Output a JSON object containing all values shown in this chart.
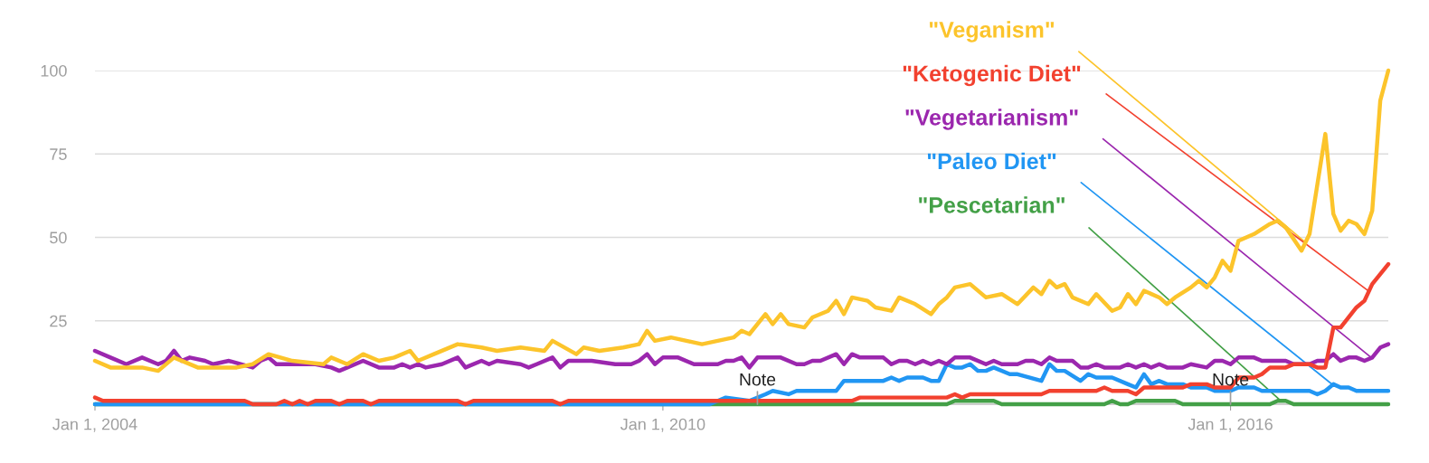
{
  "chart_data": {
    "type": "line",
    "grid": "y",
    "legend": false,
    "xlim": [
      "2004-01-01",
      "2017-09-01"
    ],
    "ylim": [
      0,
      100
    ],
    "xticks": [
      {
        "value": "2004-01-01",
        "label": "Jan 1, 2004"
      },
      {
        "value": "2010-01-01",
        "label": "Jan 1, 2010"
      },
      {
        "value": "2016-01-01",
        "label": "Jan 1, 2016"
      }
    ],
    "yticks": [
      25,
      50,
      75,
      100
    ],
    "annotations": [
      {
        "text": "Note",
        "x": "2011-01",
        "y": 0
      },
      {
        "text": "Note",
        "x": "2016-01",
        "y": 0
      }
    ],
    "series": [
      {
        "name": "\"Veganism\"",
        "color": "#fcc42b",
        "x": [
          "2004-01",
          "2004-03",
          "2004-07",
          "2004-09",
          "2004-11",
          "2005-02",
          "2005-07",
          "2005-09",
          "2005-11",
          "2006-02",
          "2006-06",
          "2006-07",
          "2006-09",
          "2006-11",
          "2007-01",
          "2007-03",
          "2007-05",
          "2007-06",
          "2007-08",
          "2007-11",
          "2008-02",
          "2008-04",
          "2008-07",
          "2008-10",
          "2008-11",
          "2009-02",
          "2009-03",
          "2009-05",
          "2009-08",
          "2009-10",
          "2009-11",
          "2009-12",
          "2010-02",
          "2010-06",
          "2010-08",
          "2010-10",
          "2010-11",
          "2010-12",
          "2011-02",
          "2011-03",
          "2011-04",
          "2011-05",
          "2011-07",
          "2011-08",
          "2011-10",
          "2011-11",
          "2011-12",
          "2012-01",
          "2012-03",
          "2012-04",
          "2012-06",
          "2012-07",
          "2012-09",
          "2012-11",
          "2012-12",
          "2013-01",
          "2013-02",
          "2013-04",
          "2013-06",
          "2013-08",
          "2013-10",
          "2013-12",
          "2014-01",
          "2014-02",
          "2014-03",
          "2014-04",
          "2014-05",
          "2014-07",
          "2014-08",
          "2014-10",
          "2014-11",
          "2014-12",
          "2015-01",
          "2015-02",
          "2015-04",
          "2015-05",
          "2015-06",
          "2015-08",
          "2015-09",
          "2015-10",
          "2015-11",
          "2015-12",
          "2016-01",
          "2016-02",
          "2016-04",
          "2016-06",
          "2016-07",
          "2016-08",
          "2016-10",
          "2016-11",
          "2017-01",
          "2017-02",
          "2017-03",
          "2017-04",
          "2017-05",
          "2017-06",
          "2017-07",
          "2017-08",
          "2017-09"
        ],
        "values": [
          13,
          11,
          11,
          10,
          14,
          11,
          11,
          12,
          15,
          13,
          12,
          14,
          12,
          15,
          13,
          14,
          16,
          13,
          15,
          18,
          17,
          16,
          17,
          16,
          19,
          15,
          17,
          16,
          17,
          18,
          22,
          19,
          20,
          18,
          19,
          20,
          22,
          21,
          27,
          24,
          27,
          24,
          23,
          26,
          28,
          31,
          27,
          32,
          31,
          29,
          28,
          32,
          30,
          27,
          30,
          32,
          35,
          36,
          32,
          33,
          30,
          35,
          33,
          37,
          35,
          36,
          32,
          30,
          33,
          28,
          29,
          33,
          30,
          34,
          32,
          30,
          32,
          35,
          37,
          35,
          38,
          43,
          40,
          49,
          51,
          54,
          55,
          53,
          46,
          51,
          81,
          57,
          52,
          55,
          54,
          51,
          58,
          91,
          100
        ]
      },
      {
        "name": "\"Ketogenic Diet\"",
        "color": "#f2412f",
        "x": [
          "2004-01",
          "2004-02",
          "2005-08",
          "2005-09",
          "2005-12",
          "2006-01",
          "2006-02",
          "2006-03",
          "2006-04",
          "2006-05",
          "2006-07",
          "2006-08",
          "2006-09",
          "2006-11",
          "2006-12",
          "2007-01",
          "2007-11",
          "2007-12",
          "2008-01",
          "2008-11",
          "2008-12",
          "2009-01",
          "2012-01",
          "2012-02",
          "2013-01",
          "2013-02",
          "2013-03",
          "2013-04",
          "2014-01",
          "2014-02",
          "2014-08",
          "2014-09",
          "2014-10",
          "2014-12",
          "2015-01",
          "2015-02",
          "2015-07",
          "2015-08",
          "2015-10",
          "2015-11",
          "2016-01",
          "2016-02",
          "2016-04",
          "2016-05",
          "2016-06",
          "2016-08",
          "2016-09",
          "2016-11",
          "2016-12",
          "2017-01",
          "2017-02",
          "2017-03",
          "2017-05",
          "2017-06",
          "2017-07",
          "2017-08",
          "2017-09"
        ],
        "values": [
          2,
          1,
          1,
          0,
          0,
          1,
          0,
          1,
          0,
          1,
          1,
          0,
          1,
          1,
          0,
          1,
          1,
          0,
          1,
          1,
          0,
          1,
          1,
          2,
          2,
          3,
          2,
          3,
          3,
          4,
          4,
          5,
          4,
          4,
          3,
          5,
          5,
          6,
          6,
          5,
          5,
          8,
          8,
          9,
          11,
          11,
          12,
          12,
          11,
          11,
          23,
          23,
          29,
          31,
          36,
          39,
          42
        ]
      },
      {
        "name": "\"Vegetarianism\"",
        "color": "#9b27ae",
        "x": [
          "2004-01",
          "2004-03",
          "2004-05",
          "2004-07",
          "2004-09",
          "2004-10",
          "2004-11",
          "2004-12",
          "2005-01",
          "2005-03",
          "2005-04",
          "2005-06",
          "2005-09",
          "2005-10",
          "2005-11",
          "2005-12",
          "2006-05",
          "2006-07",
          "2006-08",
          "2006-09",
          "2006-11",
          "2007-01",
          "2007-03",
          "2007-04",
          "2007-05",
          "2007-06",
          "2007-07",
          "2007-09",
          "2007-11",
          "2007-12",
          "2008-02",
          "2008-03",
          "2008-04",
          "2008-07",
          "2008-08",
          "2008-09",
          "2008-11",
          "2008-12",
          "2009-01",
          "2009-04",
          "2009-07",
          "2009-09",
          "2009-10",
          "2009-11",
          "2009-12",
          "2010-01",
          "2010-03",
          "2010-05",
          "2010-08",
          "2010-09",
          "2010-10",
          "2010-11",
          "2010-12",
          "2011-01",
          "2011-04",
          "2011-06",
          "2011-07",
          "2011-08",
          "2011-09",
          "2011-11",
          "2011-12",
          "2012-01",
          "2012-02",
          "2012-05",
          "2012-06",
          "2012-07",
          "2012-08",
          "2012-09",
          "2012-10",
          "2012-11",
          "2012-12",
          "2013-01",
          "2013-02",
          "2013-04",
          "2013-06",
          "2013-07",
          "2013-08",
          "2013-10",
          "2013-11",
          "2013-12",
          "2014-01",
          "2014-02",
          "2014-03",
          "2014-05",
          "2014-06",
          "2014-07",
          "2014-08",
          "2014-09",
          "2014-11",
          "2014-12",
          "2015-01",
          "2015-02",
          "2015-03",
          "2015-04",
          "2015-05",
          "2015-07",
          "2015-08",
          "2015-10",
          "2015-11",
          "2015-12",
          "2016-01",
          "2016-02",
          "2016-04",
          "2016-05",
          "2016-08",
          "2016-09",
          "2016-11",
          "2016-12",
          "2017-01",
          "2017-02",
          "2017-03",
          "2017-04",
          "2017-05",
          "2017-06",
          "2017-07",
          "2017-08",
          "2017-09"
        ],
        "values": [
          16,
          14,
          12,
          14,
          12,
          13,
          16,
          13,
          14,
          13,
          12,
          13,
          11,
          13,
          14,
          12,
          12,
          11,
          10,
          11,
          13,
          11,
          11,
          12,
          11,
          12,
          11,
          12,
          14,
          11,
          13,
          12,
          13,
          12,
          11,
          12,
          14,
          11,
          13,
          13,
          12,
          12,
          13,
          15,
          12,
          14,
          14,
          12,
          12,
          13,
          13,
          14,
          11,
          14,
          14,
          12,
          12,
          13,
          13,
          15,
          12,
          15,
          14,
          14,
          12,
          13,
          13,
          12,
          13,
          12,
          13,
          12,
          14,
          14,
          12,
          13,
          12,
          12,
          13,
          13,
          12,
          14,
          13,
          13,
          11,
          11,
          12,
          11,
          11,
          12,
          11,
          12,
          11,
          12,
          11,
          11,
          12,
          11,
          13,
          13,
          12,
          14,
          14,
          13,
          13,
          12,
          12,
          13,
          13,
          15,
          13,
          14,
          14,
          13,
          14,
          17,
          18
        ]
      },
      {
        "name": "\"Paleo Diet\"",
        "color": "#2196f3",
        "x": [
          "2004-01",
          "2010-07",
          "2010-08",
          "2010-09",
          "2010-12",
          "2011-02",
          "2011-03",
          "2011-05",
          "2011-06",
          "2011-11",
          "2011-12",
          "2012-05",
          "2012-06",
          "2012-07",
          "2012-08",
          "2012-10",
          "2012-11",
          "2012-12",
          "2013-01",
          "2013-02",
          "2013-03",
          "2013-04",
          "2013-05",
          "2013-06",
          "2013-07",
          "2013-09",
          "2013-10",
          "2014-01",
          "2014-02",
          "2014-03",
          "2014-04",
          "2014-06",
          "2014-07",
          "2014-08",
          "2014-10",
          "2014-12",
          "2015-01",
          "2015-02",
          "2015-03",
          "2015-04",
          "2015-05",
          "2015-07",
          "2015-08",
          "2015-10",
          "2015-11",
          "2016-01",
          "2016-02",
          "2016-04",
          "2016-05",
          "2016-11",
          "2016-12",
          "2017-01",
          "2017-02",
          "2017-03",
          "2017-04",
          "2017-05",
          "2017-09"
        ],
        "values": [
          0,
          0,
          1,
          2,
          1,
          3,
          4,
          3,
          4,
          4,
          7,
          7,
          8,
          7,
          8,
          8,
          7,
          7,
          12,
          11,
          11,
          12,
          10,
          10,
          11,
          9,
          9,
          7,
          12,
          10,
          10,
          7,
          9,
          8,
          8,
          6,
          5,
          9,
          6,
          7,
          6,
          6,
          5,
          5,
          4,
          4,
          5,
          5,
          4,
          4,
          3,
          4,
          6,
          5,
          5,
          4,
          4
        ]
      },
      {
        "name": "\"Pescetarian\"",
        "color": "#43a047",
        "x": [
          "2004-01",
          "2013-01",
          "2013-02",
          "2013-07",
          "2013-08",
          "2014-09",
          "2014-10",
          "2014-11",
          "2014-12",
          "2015-01",
          "2015-06",
          "2015-07",
          "2016-06",
          "2016-07",
          "2016-08",
          "2016-09",
          "2017-09"
        ],
        "values": [
          0,
          0,
          1,
          1,
          0,
          0,
          1,
          0,
          0,
          1,
          1,
          0,
          0,
          1,
          1,
          0,
          0
        ]
      }
    ]
  }
}
